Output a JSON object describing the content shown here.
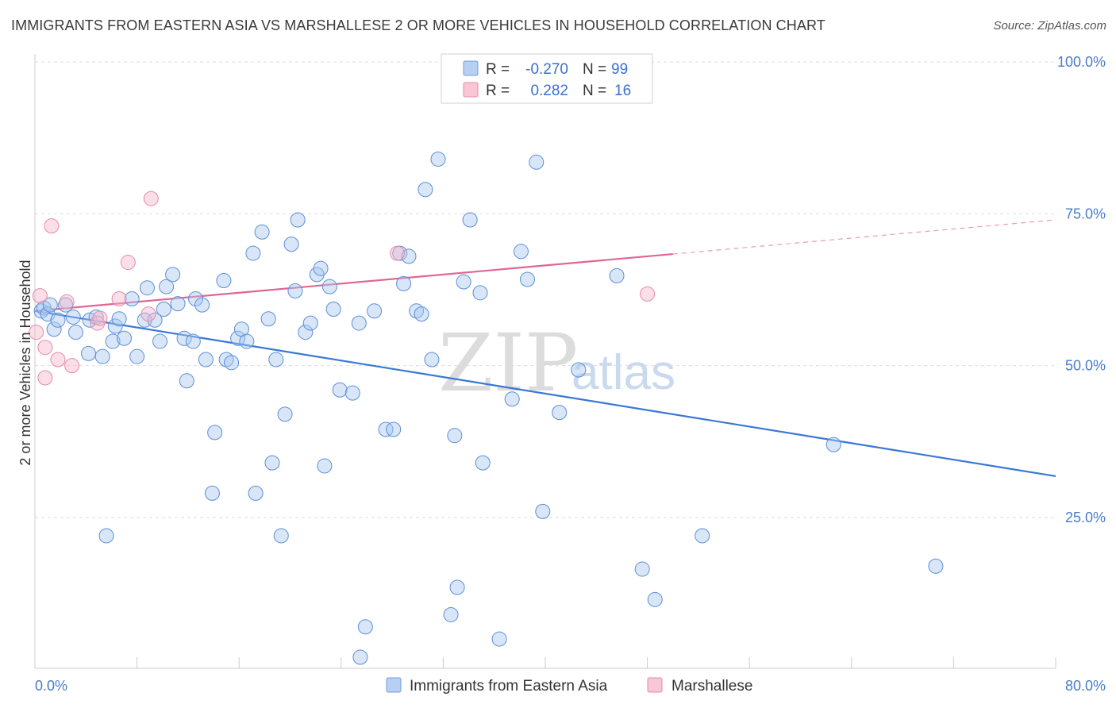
{
  "title": "IMMIGRANTS FROM EASTERN ASIA VS MARSHALLESE 2 OR MORE VEHICLES IN HOUSEHOLD CORRELATION CHART",
  "source": "Source: ZipAtlas.com",
  "watermark": {
    "zip": "ZIP",
    "atlas": "atlas"
  },
  "colors": {
    "blue": "#3a78d4",
    "blue_fill": "#a9c7f0",
    "pink": "#e06693",
    "pink_fill": "#f5b8cb",
    "axis_text": "#4a7cc9"
  },
  "legend": {
    "r_label": "R =",
    "n_label": "N =",
    "rows": [
      {
        "r": "-0.270",
        "n": "99"
      },
      {
        "r": "0.282",
        "n": "16"
      }
    ]
  },
  "chart_data": {
    "type": "scatter",
    "title": "IMMIGRANTS FROM EASTERN ASIA VS MARSHALLESE 2 OR MORE VEHICLES IN HOUSEHOLD CORRELATION CHART",
    "xlabel": "",
    "ylabel": "2 or more Vehicles in Household",
    "xlim": [
      0,
      80
    ],
    "ylim": [
      0,
      102
    ],
    "x_tick_labels": [
      "0.0%",
      "80.0%"
    ],
    "y_ticks": [
      25,
      50,
      75,
      100
    ],
    "y_tick_labels": [
      "25.0%",
      "50.0%",
      "75.0%",
      "100.0%"
    ],
    "grid": true,
    "legend_position": "top-center",
    "series": [
      {
        "name": "Immigrants from Eastern Asia",
        "color": "#3a78d4",
        "points": [
          [
            0.5,
            59
          ],
          [
            0.7,
            59.5
          ],
          [
            1,
            58.5
          ],
          [
            1.2,
            60
          ],
          [
            1.5,
            56
          ],
          [
            1.8,
            57.5
          ],
          [
            2.4,
            60
          ],
          [
            3,
            58
          ],
          [
            3.2,
            55.5
          ],
          [
            4.2,
            52
          ],
          [
            4.3,
            57.5
          ],
          [
            4.8,
            58
          ],
          [
            5.3,
            51.5
          ],
          [
            5.6,
            22
          ],
          [
            6.1,
            54
          ],
          [
            6.3,
            56.5
          ],
          [
            6.6,
            57.7
          ],
          [
            7,
            54.5
          ],
          [
            7.6,
            61
          ],
          [
            8,
            51.5
          ],
          [
            8.6,
            57.5
          ],
          [
            8.8,
            62.8
          ],
          [
            9.4,
            57.5
          ],
          [
            9.8,
            54
          ],
          [
            10.1,
            59.3
          ],
          [
            10.3,
            63
          ],
          [
            10.8,
            65
          ],
          [
            11.2,
            60.2
          ],
          [
            11.7,
            54.5
          ],
          [
            11.9,
            47.5
          ],
          [
            12.4,
            54
          ],
          [
            12.6,
            61
          ],
          [
            13.1,
            60
          ],
          [
            13.4,
            51
          ],
          [
            13.9,
            29
          ],
          [
            14.1,
            39
          ],
          [
            14.8,
            64
          ],
          [
            15,
            51
          ],
          [
            15.4,
            50.5
          ],
          [
            15.9,
            54.5
          ],
          [
            16.2,
            56
          ],
          [
            16.6,
            54
          ],
          [
            17.1,
            68.5
          ],
          [
            17.3,
            29
          ],
          [
            17.8,
            72
          ],
          [
            18.3,
            57.7
          ],
          [
            18.6,
            34
          ],
          [
            18.9,
            51
          ],
          [
            19.3,
            22
          ],
          [
            19.6,
            42
          ],
          [
            20.1,
            70
          ],
          [
            20.4,
            62.3
          ],
          [
            20.6,
            74
          ],
          [
            21.2,
            55.5
          ],
          [
            21.6,
            57
          ],
          [
            22.1,
            65
          ],
          [
            22.4,
            66
          ],
          [
            22.7,
            33.5
          ],
          [
            23.1,
            63
          ],
          [
            23.4,
            59.3
          ],
          [
            23.9,
            46
          ],
          [
            24.9,
            45.5
          ],
          [
            25.4,
            57
          ],
          [
            25.9,
            7
          ],
          [
            25.5,
            2
          ],
          [
            26.6,
            59
          ],
          [
            27.5,
            39.5
          ],
          [
            28.1,
            39.5
          ],
          [
            28.6,
            68.5
          ],
          [
            28.9,
            63.5
          ],
          [
            29.3,
            68
          ],
          [
            29.9,
            59
          ],
          [
            30.3,
            58.5
          ],
          [
            30.6,
            79
          ],
          [
            31.1,
            51
          ],
          [
            31.6,
            84
          ],
          [
            32.6,
            9
          ],
          [
            32.9,
            38.5
          ],
          [
            33.1,
            13.5
          ],
          [
            33.6,
            63.8
          ],
          [
            34.1,
            74
          ],
          [
            34.9,
            62
          ],
          [
            35.1,
            34
          ],
          [
            36.4,
            5
          ],
          [
            37.4,
            44.5
          ],
          [
            38.1,
            68.8
          ],
          [
            38.6,
            64.2
          ],
          [
            39.3,
            83.5
          ],
          [
            39.8,
            26
          ],
          [
            41.1,
            42.3
          ],
          [
            42.6,
            49.3
          ],
          [
            45.6,
            64.8
          ],
          [
            47.6,
            16.5
          ],
          [
            48.6,
            11.5
          ],
          [
            52.3,
            22
          ],
          [
            62.6,
            37
          ],
          [
            70.6,
            17
          ],
          [
            43,
            100
          ]
        ],
        "trend": {
          "x0": 0,
          "y0": 59,
          "x1": 80,
          "y1": 31.8
        }
      },
      {
        "name": "Marshallese",
        "color": "#e06693",
        "points": [
          [
            0.1,
            55.5
          ],
          [
            0.4,
            61.5
          ],
          [
            0.8,
            53
          ],
          [
            0.8,
            48
          ],
          [
            1.3,
            73
          ],
          [
            1.8,
            51
          ],
          [
            2.5,
            60.5
          ],
          [
            2.9,
            50
          ],
          [
            4.9,
            57
          ],
          [
            5.1,
            57.8
          ],
          [
            6.6,
            61
          ],
          [
            7.3,
            67
          ],
          [
            8.9,
            58.5
          ],
          [
            9.1,
            77.5
          ],
          [
            28.4,
            68.5
          ],
          [
            48,
            61.8
          ]
        ],
        "trend": {
          "x0": 0,
          "y0": 59,
          "x1": 80,
          "y1": 74
        },
        "trend_solid_until_x": 50
      }
    ]
  },
  "bottom_legend": [
    "Immigrants from Eastern Asia",
    "Marshallese"
  ]
}
